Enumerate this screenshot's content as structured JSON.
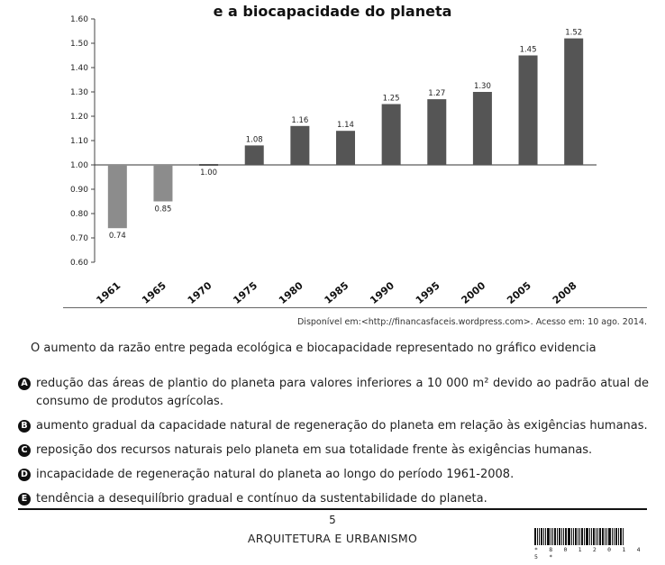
{
  "chart_data": {
    "type": "bar",
    "title": "e a biocapacidade do planeta",
    "categories": [
      "1961",
      "1965",
      "1970",
      "1975",
      "1980",
      "1985",
      "1990",
      "1995",
      "2000",
      "2005",
      "2008"
    ],
    "values": [
      0.74,
      0.85,
      1.0,
      1.08,
      1.16,
      1.14,
      1.25,
      1.27,
      1.3,
      1.45,
      1.52
    ],
    "value_labels": [
      "0.74",
      "0.85",
      "1.00",
      "1.08",
      "1.16",
      "1.14",
      "1.25",
      "1.27",
      "1.30",
      "1.45",
      "1.52"
    ],
    "ylim": [
      0.6,
      1.6
    ],
    "baseline": 1.0,
    "yticks": [
      "0.60",
      "0.70",
      "0.80",
      "0.90",
      "1.00",
      "1.10",
      "1.20",
      "1.30",
      "1.40",
      "1.50",
      "1.60"
    ],
    "colors": {
      "below_baseline": "#8c8c8c",
      "above_baseline": "#555555"
    },
    "grid": false
  },
  "source": "Disponível em:<http://financasfaceis.wordpress.com>. Acesso em: 10 ago. 2014.",
  "question": "O aumento da razão entre pegada ecológica e biocapacidade representado no gráfico evidencia",
  "options": [
    {
      "letter": "A",
      "text": "redução das áreas de plantio do planeta para valores inferiores a 10 000 m² devido ao padrão atual de consumo de produtos agrícolas."
    },
    {
      "letter": "B",
      "text": "aumento gradual da capacidade natural de regeneração do planeta em relação às exigências humanas."
    },
    {
      "letter": "C",
      "text": "reposição dos recursos naturais pelo planeta em sua totalidade frente às exigências humanas."
    },
    {
      "letter": "D",
      "text": "incapacidade de regeneração natural do planeta ao longo do período 1961-2008."
    },
    {
      "letter": "E",
      "text": "tendência a desequilíbrio gradual e contínuo da sustentabilidade do planeta."
    }
  ],
  "footer": {
    "page_number": "5",
    "course": "ARQUITETURA E URBANISMO",
    "barcode_digits": "* 8 0 1 2 0 1 4 5 *"
  }
}
